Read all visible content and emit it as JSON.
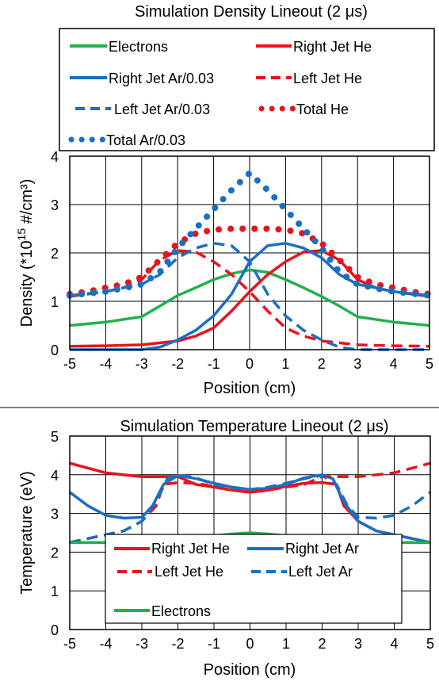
{
  "chart_data": [
    {
      "type": "line",
      "title": "Simulation Density Lineout (2 μs)",
      "xlabel": "Position (cm)",
      "ylabel_parts": [
        "Density (*10",
        "15",
        " #/cm³)"
      ],
      "xlim": [
        -5,
        5
      ],
      "ylim": [
        0,
        4
      ],
      "x_ticks": [
        -5,
        -4,
        -3,
        -2,
        -1,
        0,
        1,
        2,
        3,
        4,
        5
      ],
      "y_ticks": [
        0,
        1,
        2,
        3,
        4
      ],
      "grid": true,
      "legend_position": "top",
      "series": [
        {
          "name": "Electrons",
          "color": "#22b14c",
          "style": "solid",
          "x": [
            -5,
            -4,
            -3,
            -2.5,
            -2,
            -1.5,
            -1,
            -0.5,
            0,
            0.5,
            1,
            1.5,
            2,
            2.5,
            3,
            4,
            5
          ],
          "y": [
            0.5,
            0.57,
            0.68,
            0.9,
            1.12,
            1.28,
            1.45,
            1.57,
            1.65,
            1.6,
            1.45,
            1.28,
            1.1,
            0.9,
            0.68,
            0.57,
            0.5
          ]
        },
        {
          "name": "Right Jet He",
          "color": "#e8141b",
          "style": "solid",
          "x": [
            -5,
            -4,
            -3,
            -2,
            -1.5,
            -1,
            -0.5,
            0,
            0.5,
            1,
            1.5,
            2,
            2.5,
            3,
            3.5,
            4,
            5
          ],
          "y": [
            0.07,
            0.08,
            0.1,
            0.18,
            0.28,
            0.45,
            0.8,
            1.2,
            1.55,
            1.82,
            2.02,
            2.05,
            1.85,
            1.45,
            1.28,
            1.2,
            1.1
          ]
        },
        {
          "name": "Right Jet Ar/0.03",
          "color": "#1a6fc4",
          "style": "solid",
          "x": [
            -5,
            -3,
            -2.5,
            -2,
            -1.5,
            -1,
            -0.5,
            0,
            0.5,
            1,
            1.5,
            2,
            2.5,
            3,
            3.5,
            4,
            5
          ],
          "y": [
            0.0,
            0.0,
            0.05,
            0.2,
            0.4,
            0.7,
            1.15,
            1.82,
            2.15,
            2.2,
            2.1,
            1.9,
            1.55,
            1.35,
            1.28,
            1.2,
            1.12
          ]
        },
        {
          "name": "Left Jet He",
          "color": "#e8141b",
          "style": "dashed",
          "x": [
            -5,
            -4,
            -3.5,
            -3,
            -2.5,
            -2,
            -1.5,
            -1,
            -0.5,
            0,
            0.5,
            1,
            1.5,
            2,
            3,
            4,
            5
          ],
          "y": [
            1.1,
            1.2,
            1.28,
            1.45,
            1.85,
            2.05,
            2.02,
            1.82,
            1.55,
            1.2,
            0.8,
            0.45,
            0.28,
            0.18,
            0.1,
            0.08,
            0.07
          ]
        },
        {
          "name": "Left Jet Ar/0.03",
          "color": "#1a6fc4",
          "style": "dashed",
          "x": [
            -5,
            -4,
            -3.5,
            -3,
            -2.5,
            -2,
            -1.5,
            -1,
            -0.5,
            0,
            0.5,
            1,
            1.5,
            2,
            2.5,
            3,
            5
          ],
          "y": [
            1.12,
            1.2,
            1.28,
            1.35,
            1.55,
            1.9,
            2.1,
            2.2,
            2.15,
            1.82,
            1.15,
            0.7,
            0.4,
            0.2,
            0.05,
            0.0,
            0.0
          ]
        },
        {
          "name": "Total He",
          "color": "#e8141b",
          "style": "dotted",
          "x": [
            -5,
            -4.5,
            -4,
            -3.5,
            -3,
            -2.5,
            -2,
            -1.5,
            -1,
            -0.5,
            0,
            0.5,
            1,
            1.5,
            2,
            2.5,
            3,
            3.5,
            4,
            4.5,
            5
          ],
          "y": [
            1.15,
            1.2,
            1.28,
            1.35,
            1.5,
            1.85,
            2.2,
            2.4,
            2.48,
            2.5,
            2.5,
            2.5,
            2.48,
            2.4,
            2.2,
            1.85,
            1.5,
            1.35,
            1.28,
            1.2,
            1.15
          ]
        },
        {
          "name": "Total Ar/0.03",
          "color": "#1a6fc4",
          "style": "dotted",
          "x": [
            -5,
            -4.5,
            -4,
            -3.5,
            -3,
            -2.5,
            -2,
            -1.5,
            -1,
            -0.5,
            0,
            0.5,
            1,
            1.5,
            2,
            2.5,
            3,
            3.5,
            4,
            4.5,
            5
          ],
          "y": [
            1.12,
            1.16,
            1.2,
            1.27,
            1.35,
            1.6,
            2.1,
            2.5,
            2.9,
            3.3,
            3.65,
            3.3,
            2.9,
            2.5,
            2.1,
            1.6,
            1.35,
            1.27,
            1.2,
            1.16,
            1.12
          ]
        }
      ]
    },
    {
      "type": "line",
      "title": "Simulation Temperature Lineout (2 μs)",
      "xlabel": "Position (cm)",
      "ylabel": "Temperature (eV)",
      "xlim": [
        -5,
        5
      ],
      "ylim": [
        0,
        5
      ],
      "x_ticks": [
        -5,
        -4,
        -3,
        -2,
        -1,
        0,
        1,
        2,
        3,
        4,
        5
      ],
      "y_ticks": [
        0,
        1,
        2,
        3,
        4,
        5
      ],
      "grid": true,
      "legend_position": "bottom-center",
      "series": [
        {
          "name": "Right Jet He",
          "color": "#e8141b",
          "style": "solid",
          "x": [
            -5,
            -4,
            -3,
            -2.2,
            -2,
            -1.5,
            -1,
            -0.5,
            0,
            0.5,
            1,
            1.5,
            2,
            2.4,
            2.6,
            3,
            3.5,
            4,
            4.5,
            5
          ],
          "y": [
            4.3,
            4.05,
            3.95,
            3.95,
            3.95,
            3.75,
            3.68,
            3.6,
            3.55,
            3.6,
            3.7,
            3.78,
            3.8,
            3.75,
            3.2,
            2.8,
            2.55,
            2.45,
            2.35,
            2.25
          ]
        },
        {
          "name": "Right Jet Ar",
          "color": "#1a6fc4",
          "style": "solid",
          "x": [
            -5,
            -4.5,
            -4,
            -3.5,
            -3,
            -2.7,
            -2.4,
            -2,
            -1.5,
            -1,
            -0.5,
            0,
            0.5,
            1,
            1.5,
            2,
            2.3,
            2.6,
            3,
            3.5,
            4,
            4.5,
            5
          ],
          "y": [
            3.55,
            3.2,
            2.95,
            2.88,
            2.9,
            3.2,
            3.75,
            3.98,
            3.9,
            3.78,
            3.68,
            3.62,
            3.65,
            3.75,
            3.92,
            4.0,
            3.9,
            3.3,
            2.8,
            2.55,
            2.45,
            2.35,
            2.25
          ]
        },
        {
          "name": "Left Jet He",
          "color": "#e8141b",
          "style": "dashed",
          "x": [
            -5,
            -4.5,
            -4,
            -3.5,
            -3,
            -2.6,
            -2.4,
            -2,
            -1.5,
            -1,
            -0.5,
            0,
            0.5,
            1,
            1.5,
            2,
            2.2,
            3,
            4,
            5
          ],
          "y": [
            2.25,
            2.35,
            2.45,
            2.55,
            2.8,
            3.2,
            3.75,
            3.8,
            3.78,
            3.7,
            3.6,
            3.55,
            3.6,
            3.68,
            3.75,
            3.95,
            3.95,
            3.95,
            4.05,
            4.3
          ]
        },
        {
          "name": "Left Jet Ar",
          "color": "#1a6fc4",
          "style": "dashed",
          "x": [
            -5,
            -4.5,
            -4,
            -3.5,
            -3,
            -2.6,
            -2.3,
            -2,
            -1.5,
            -1,
            -0.5,
            0,
            0.5,
            1,
            1.5,
            2,
            2.4,
            2.7,
            3,
            3.5,
            4,
            4.5,
            5
          ],
          "y": [
            2.25,
            2.35,
            2.45,
            2.55,
            2.8,
            3.3,
            3.9,
            4.0,
            3.92,
            3.75,
            3.65,
            3.62,
            3.68,
            3.78,
            3.9,
            3.98,
            3.75,
            3.2,
            2.9,
            2.88,
            2.95,
            3.2,
            3.55
          ]
        },
        {
          "name": "Electrons",
          "color": "#22b14c",
          "style": "solid",
          "x": [
            -5,
            -4,
            -3,
            -2.5,
            -2,
            -1.5,
            -1,
            -0.5,
            0,
            0.5,
            1,
            1.5,
            2,
            2.5,
            3,
            4,
            5
          ],
          "y": [
            2.25,
            2.25,
            2.25,
            2.28,
            2.32,
            2.36,
            2.42,
            2.47,
            2.5,
            2.47,
            2.42,
            2.36,
            2.32,
            2.28,
            2.25,
            2.25,
            2.25
          ]
        }
      ]
    }
  ]
}
